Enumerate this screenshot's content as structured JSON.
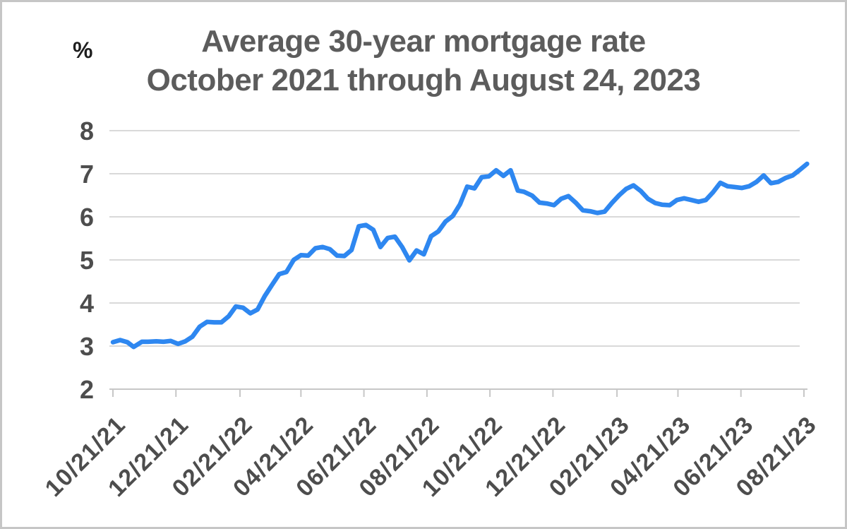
{
  "header": {
    "title_line1": "Average 30-year mortgage rate",
    "title_line2": "October 2021 through August 24, 2023",
    "unit_label": "%"
  },
  "colors": {
    "line": "#2e87f0",
    "grid": "#d9d9d9",
    "axis": "#c7c7c7",
    "tick_text": "#4d4d4d",
    "title_text": "#5c5c5c",
    "unit_text": "#1e1e1e",
    "frame_border": "#c6c6c6",
    "background": "#ffffff"
  },
  "chart_data": {
    "type": "line",
    "title": "Average 30-year mortgage rate October 2021 through August 24, 2023",
    "xlabel": "",
    "ylabel": "%",
    "ylim": [
      2,
      8
    ],
    "y_ticks": [
      8,
      7,
      6,
      5,
      4,
      3,
      2
    ],
    "grid": "horizontal",
    "legend_position": "none",
    "x_tick_labels": [
      "10/21/21",
      "12/21/21",
      "02/21/22",
      "04/21/22",
      "06/21/22",
      "08/21/22",
      "10/21/22",
      "12/21/22",
      "02/21/23",
      "04/21/23",
      "06/21/23",
      "08/21/23"
    ],
    "series": [
      {
        "name": "Average 30-year mortgage rate (%)",
        "x": [
          "10/21/21",
          "10/28/21",
          "11/04/21",
          "11/10/21",
          "11/18/21",
          "11/24/21",
          "12/02/21",
          "12/09/21",
          "12/16/21",
          "12/23/21",
          "12/30/21",
          "01/06/22",
          "01/13/22",
          "01/20/22",
          "01/27/22",
          "02/03/22",
          "02/10/22",
          "02/17/22",
          "02/24/22",
          "03/03/22",
          "03/10/22",
          "03/17/22",
          "03/24/22",
          "03/31/22",
          "04/07/22",
          "04/14/22",
          "04/21/22",
          "04/28/22",
          "05/05/22",
          "05/12/22",
          "05/19/22",
          "05/26/22",
          "06/02/22",
          "06/09/22",
          "06/16/22",
          "06/23/22",
          "06/30/22",
          "07/07/22",
          "07/14/22",
          "07/21/22",
          "07/28/22",
          "08/04/22",
          "08/11/22",
          "08/18/22",
          "08/25/22",
          "09/01/22",
          "09/08/22",
          "09/15/22",
          "09/22/22",
          "09/29/22",
          "10/06/22",
          "10/13/22",
          "10/20/22",
          "10/27/22",
          "11/03/22",
          "11/10/22",
          "11/17/22",
          "11/23/22",
          "12/01/22",
          "12/08/22",
          "12/15/22",
          "12/22/22",
          "12/29/22",
          "01/05/23",
          "01/12/23",
          "01/19/23",
          "01/26/23",
          "02/02/23",
          "02/09/23",
          "02/16/23",
          "02/23/23",
          "03/02/23",
          "03/09/23",
          "03/16/23",
          "03/23/23",
          "03/30/23",
          "04/06/23",
          "04/13/23",
          "04/20/23",
          "04/27/23",
          "05/04/23",
          "05/11/23",
          "05/18/23",
          "05/25/23",
          "06/01/23",
          "06/08/23",
          "06/15/23",
          "06/22/23",
          "06/29/23",
          "07/06/23",
          "07/13/23",
          "07/20/23",
          "07/27/23",
          "08/03/23",
          "08/10/23",
          "08/17/23",
          "08/24/23"
        ],
        "values": [
          3.09,
          3.14,
          3.09,
          2.98,
          3.1,
          3.1,
          3.11,
          3.1,
          3.12,
          3.05,
          3.11,
          3.22,
          3.45,
          3.56,
          3.55,
          3.55,
          3.69,
          3.92,
          3.89,
          3.76,
          3.85,
          4.16,
          4.42,
          4.67,
          4.72,
          5.0,
          5.11,
          5.1,
          5.27,
          5.3,
          5.25,
          5.1,
          5.09,
          5.23,
          5.78,
          5.81,
          5.7,
          5.3,
          5.51,
          5.54,
          5.3,
          4.99,
          5.22,
          5.13,
          5.55,
          5.66,
          5.89,
          6.02,
          6.29,
          6.7,
          6.66,
          6.92,
          6.94,
          7.08,
          6.95,
          7.08,
          6.61,
          6.58,
          6.49,
          6.33,
          6.31,
          6.27,
          6.42,
          6.48,
          6.33,
          6.15,
          6.13,
          6.09,
          6.12,
          6.32,
          6.5,
          6.65,
          6.73,
          6.6,
          6.42,
          6.32,
          6.28,
          6.27,
          6.39,
          6.43,
          6.39,
          6.35,
          6.39,
          6.57,
          6.79,
          6.71,
          6.69,
          6.67,
          6.71,
          6.81,
          6.96,
          6.78,
          6.81,
          6.9,
          6.96,
          7.09,
          7.23
        ]
      }
    ]
  }
}
